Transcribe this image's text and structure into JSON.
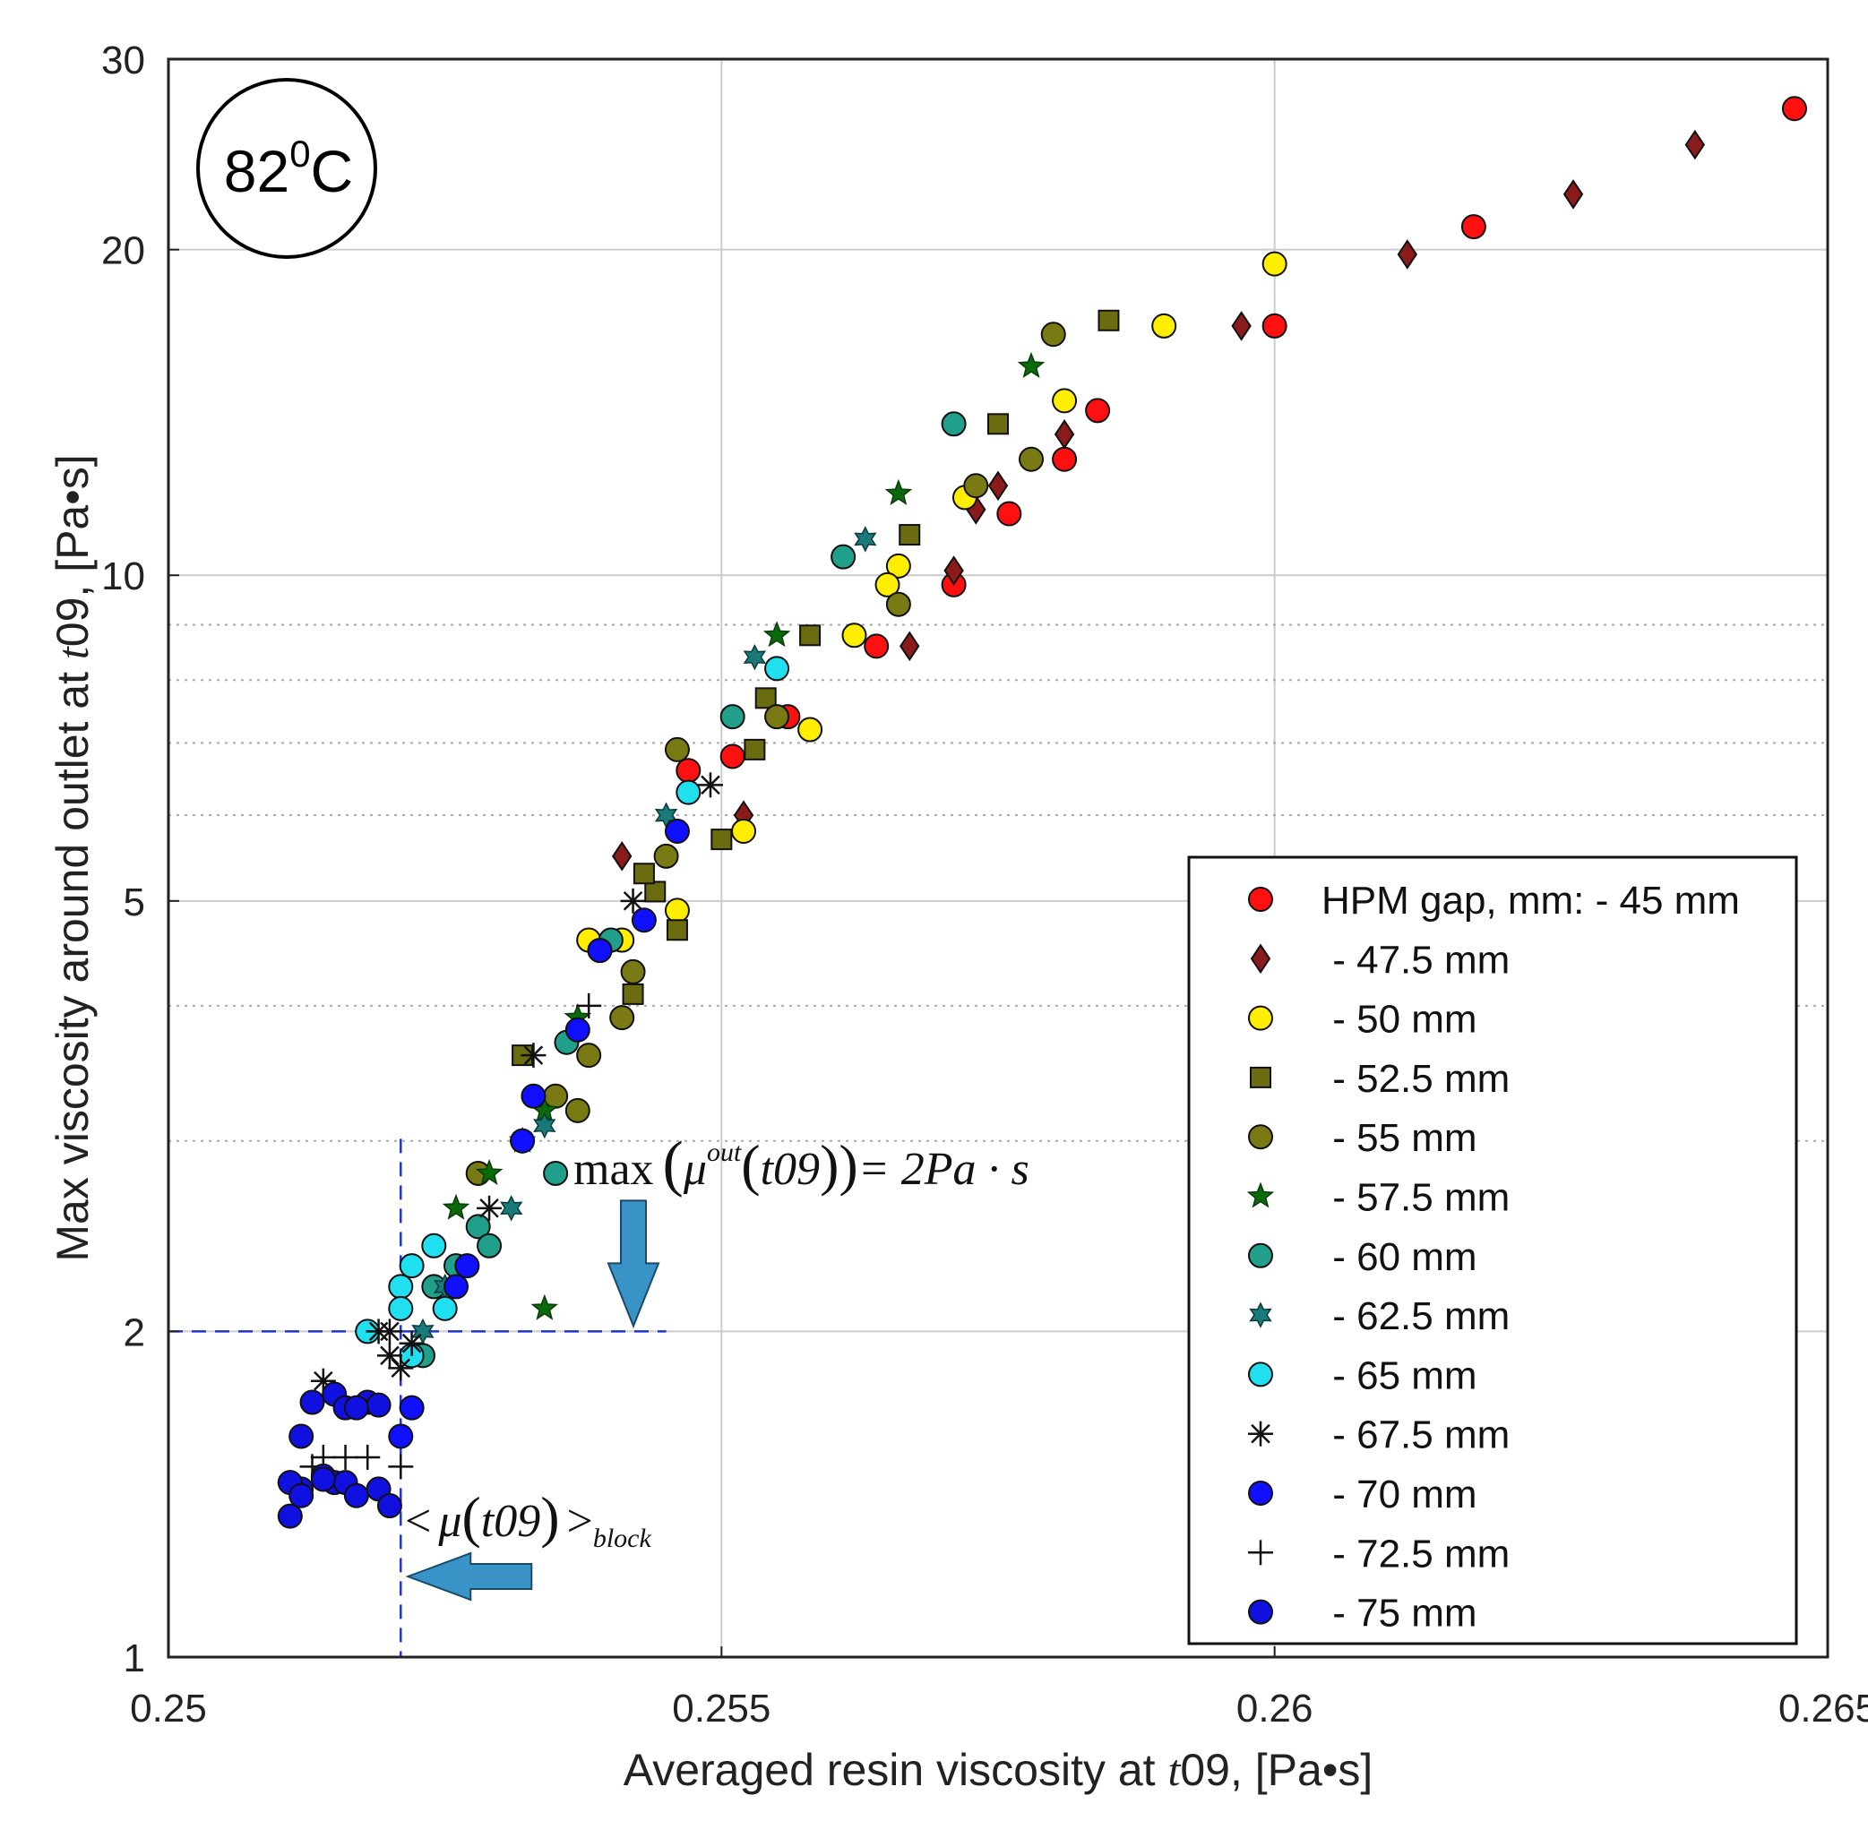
{
  "chart_data": {
    "type": "scatter",
    "xlabel_prefix": "Averaged resin viscosity at ",
    "xlabel_var": "t",
    "xlabel_suffix": "09, [Pa•s]",
    "ylabel_prefix": "Max viscosity around outlet at ",
    "ylabel_var": "t",
    "ylabel_suffix": "09, [Pa•s]",
    "y_scale": "log",
    "xlim": [
      0.25,
      0.265
    ],
    "ylim": [
      1,
      30
    ],
    "x_ticks": [
      0.25,
      0.255,
      0.26,
      0.265
    ],
    "x_tick_labels": [
      "0.25",
      "0.255",
      "0.26",
      "0.265"
    ],
    "y_ticks": [
      1,
      2,
      5,
      10,
      20,
      30
    ],
    "y_tick_labels": [
      "1",
      "2",
      "5",
      "10",
      "20",
      "30"
    ],
    "y_minor_gridlines": [
      3,
      4,
      6,
      7,
      8,
      9
    ],
    "grid": true,
    "temperature_badge": {
      "value": "82",
      "sup": "0",
      "unit": "C"
    },
    "legend_position": "bottom-right",
    "annotations": {
      "threshold": {
        "y": 2,
        "x_end": 0.2545,
        "text_prefix": "max",
        "text_mu": "μ",
        "text_sup": "out",
        "text_arg": "t09",
        "text_rhs": "= 2Pa · s",
        "arrow_color": "#3a93c6"
      },
      "block": {
        "x": 0.2521,
        "text_lt": "<",
        "text_mu": "μ",
        "text_arg": "t09",
        "text_gt": ">",
        "text_sub": "block"
      }
    },
    "series": [
      {
        "name": "HPM gap, mm: - 45 mm",
        "marker": "circle",
        "color": "#ff1010",
        "x": [
          0.2647,
          0.2618,
          0.26,
          0.2584,
          0.2581,
          0.2576,
          0.2571,
          0.2564,
          0.2556,
          0.2551,
          0.2547
        ],
        "y": [
          27,
          21,
          17,
          14.2,
          12.8,
          11.4,
          9.8,
          8.6,
          7.4,
          6.8,
          6.6
        ]
      },
      {
        "name": " - 47.5 mm",
        "marker": "diamond",
        "color": "#8b1a1a",
        "x": [
          0.2638,
          0.2627,
          0.2612,
          0.2597,
          0.2581,
          0.2575,
          0.2573,
          0.2571,
          0.2567,
          0.2552,
          0.2541
        ],
        "y": [
          25,
          22.5,
          19.8,
          17,
          13.5,
          12.1,
          11.5,
          10.1,
          8.6,
          6,
          5.5
        ]
      },
      {
        "name": " - 50 mm",
        "marker": "circle",
        "color": "#ffee00",
        "x": [
          0.26,
          0.259,
          0.2581,
          0.2572,
          0.2566,
          0.2565,
          0.2562,
          0.2558,
          0.2552,
          0.2546,
          0.2541,
          0.2538
        ],
        "y": [
          19.4,
          17,
          14.5,
          11.8,
          10.2,
          9.8,
          8.8,
          7.2,
          5.8,
          4.9,
          4.6,
          4.6
        ]
      },
      {
        "name": " - 52.5 mm",
        "marker": "square",
        "color": "#6b6b10",
        "x": [
          0.2585,
          0.2575,
          0.2567,
          0.2558,
          0.2554,
          0.2553,
          0.255,
          0.2546,
          0.2544,
          0.2543,
          0.2542,
          0.2532
        ],
        "y": [
          17.2,
          13.8,
          10.9,
          8.8,
          7.7,
          6.9,
          5.7,
          4.7,
          5.1,
          5.3,
          4.1,
          3.6
        ]
      },
      {
        "name": " - 55 mm",
        "marker": "circle",
        "color": "#7a7a14",
        "x": [
          0.258,
          0.2578,
          0.2573,
          0.2566,
          0.2555,
          0.2546,
          0.2545,
          0.2542,
          0.2541,
          0.2538,
          0.2535,
          0.2537,
          0.2528
        ],
        "y": [
          16.7,
          12.8,
          12.1,
          9.4,
          7.4,
          6.9,
          5.5,
          4.3,
          3.9,
          3.6,
          3.3,
          3.2,
          2.8
        ]
      },
      {
        "name": " - 57.5 mm",
        "marker": "star5",
        "color": "#0a6a0a",
        "x": [
          0.2578,
          0.2566,
          0.2555,
          0.2537,
          0.2534,
          0.2529,
          0.2532,
          0.2526,
          0.2534
        ],
        "y": [
          15.6,
          11.9,
          8.8,
          3.9,
          3.2,
          2.8,
          3,
          2.6,
          2.1
        ]
      },
      {
        "name": " - 60 mm",
        "marker": "circle",
        "color": "#20a08a",
        "x": [
          0.2561,
          0.2571,
          0.2551,
          0.2535,
          0.2528,
          0.2529,
          0.2526,
          0.2524,
          0.2523,
          0.2536,
          0.254
        ],
        "y": [
          10.4,
          13.8,
          7.4,
          2.8,
          2.5,
          2.4,
          2.3,
          2.2,
          1.9,
          3.7,
          4.6
        ]
      },
      {
        "name": " - 62.5 mm",
        "marker": "star6",
        "color": "#1a7a7a",
        "x": [
          0.2563,
          0.2553,
          0.2545,
          0.2534,
          0.2531,
          0.2527,
          0.2525,
          0.2521,
          0.2523
        ],
        "y": [
          10.8,
          8.4,
          6,
          3.1,
          2.6,
          2.3,
          2.2,
          2.2,
          2
        ]
      },
      {
        "name": " - 65 mm",
        "marker": "circle",
        "color": "#20e0f0",
        "x": [
          0.2555,
          0.2547,
          0.2539,
          0.2524,
          0.2522,
          0.2521,
          0.2521,
          0.2518,
          0.2522,
          0.2525
        ],
        "y": [
          8.2,
          6.3,
          4.5,
          2.4,
          2.3,
          2.2,
          2.1,
          2,
          1.9,
          2.1
        ]
      },
      {
        "name": " - 67.5 mm",
        "marker": "asterisk",
        "color": "#111111",
        "x": [
          0.2549,
          0.2542,
          0.2533,
          0.2529,
          0.2532,
          0.252,
          0.252,
          0.2521,
          0.2522,
          0.2514,
          0.2519
        ],
        "y": [
          6.4,
          5,
          3.6,
          2.6,
          3,
          2,
          1.9,
          1.85,
          1.95,
          1.8,
          2
        ]
      },
      {
        "name": " - 70 mm",
        "marker": "circle",
        "color": "#1010ff",
        "x": [
          0.2546,
          0.2543,
          0.2539,
          0.2537,
          0.2533,
          0.2532,
          0.2527,
          0.2526,
          0.2522,
          0.2521
        ],
        "y": [
          5.8,
          4.8,
          4.5,
          3.8,
          3.3,
          3,
          2.3,
          2.2,
          1.7,
          1.6
        ]
      },
      {
        "name": " - 72.5 mm",
        "marker": "plus",
        "color": "#111111",
        "x": [
          0.2538,
          0.2521,
          0.2518,
          0.2516,
          0.2514,
          0.2513,
          0.2511
        ],
        "y": [
          4,
          1.5,
          1.53,
          1.53,
          1.53,
          1.5,
          1.45
        ]
      },
      {
        "name": " - 75 mm",
        "marker": "circle",
        "color": "#1010e0",
        "x": [
          0.2511,
          0.2512,
          0.2514,
          0.2515,
          0.2516,
          0.2517,
          0.2519,
          0.252,
          0.2512,
          0.2513,
          0.2515,
          0.2516,
          0.2518,
          0.2519,
          0.2511,
          0.2514,
          0.2517,
          0.2512
        ],
        "y": [
          1.35,
          1.43,
          1.47,
          1.45,
          1.45,
          1.41,
          1.43,
          1.38,
          1.6,
          1.72,
          1.75,
          1.7,
          1.72,
          1.71,
          1.45,
          1.46,
          1.7,
          1.41
        ]
      }
    ]
  }
}
